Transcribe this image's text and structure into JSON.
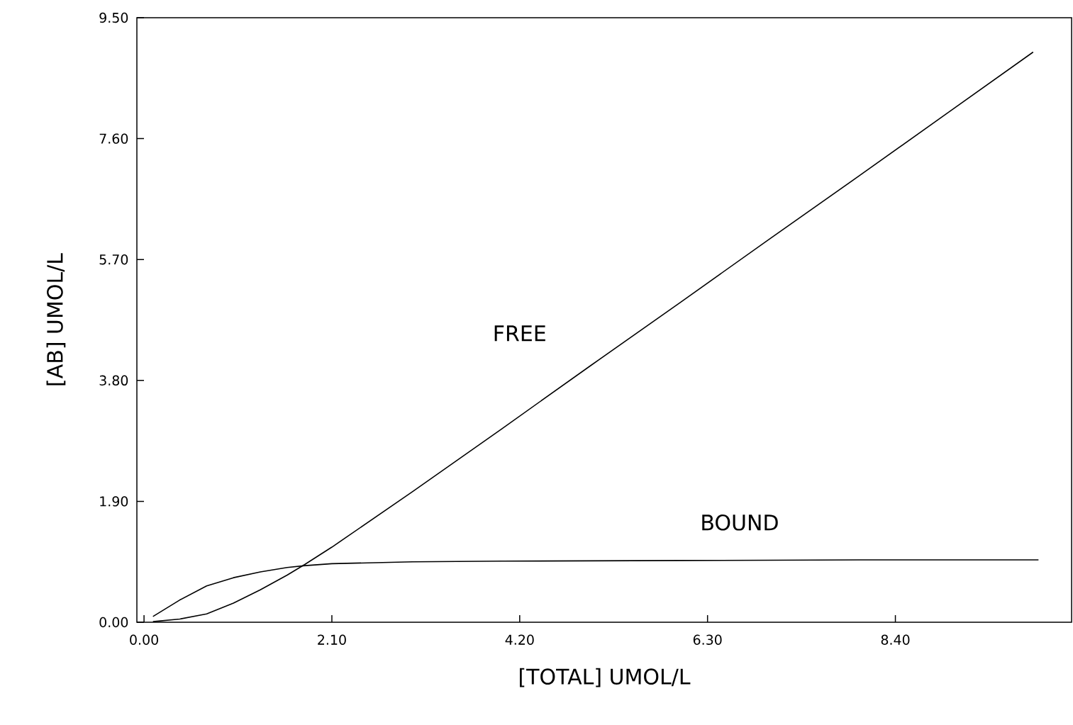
{
  "chart_data": {
    "type": "line",
    "xlabel": "[TOTAL] UMOL/L",
    "ylabel": "[AB] UMOL/L",
    "xlim": [
      -0.08,
      10.37
    ],
    "ylim": [
      0,
      9.5
    ],
    "xticks": [
      {
        "value": 0,
        "label": "0.00"
      },
      {
        "value": 2.1,
        "label": "2.10"
      },
      {
        "value": 4.2,
        "label": "4.20"
      },
      {
        "value": 6.3,
        "label": "6.30"
      },
      {
        "value": 8.4,
        "label": "8.40"
      }
    ],
    "yticks": [
      {
        "value": 0,
        "label": "0.00"
      },
      {
        "value": 1.9,
        "label": "1.90"
      },
      {
        "value": 3.8,
        "label": "3.80"
      },
      {
        "value": 5.7,
        "label": "5.70"
      },
      {
        "value": 7.6,
        "label": "7.60"
      },
      {
        "value": 9.5,
        "label": "9.50"
      }
    ],
    "x": [
      0.1,
      0.4,
      0.7,
      1.0,
      1.3,
      1.6,
      1.8,
      2.1,
      3,
      4,
      5,
      6,
      7,
      8,
      9,
      9.94
    ],
    "series": [
      {
        "name": "FREE",
        "color": "#000000",
        "values": [
          0.01,
          0.05,
          0.13,
          0.3,
          0.51,
          0.74,
          0.91,
          1.18,
          2.05,
          3.04,
          4.04,
          5.03,
          6.03,
          7.02,
          8.02,
          8.96
        ]
      },
      {
        "name": "BOUND",
        "color": "#000000",
        "x": [
          0.1,
          0.4,
          0.7,
          1.0,
          1.3,
          1.6,
          1.8,
          2.1,
          3,
          4,
          6,
          8,
          10.0
        ],
        "values": [
          0.09,
          0.35,
          0.57,
          0.7,
          0.79,
          0.86,
          0.89,
          0.92,
          0.95,
          0.96,
          0.97,
          0.98,
          0.98
        ]
      }
    ],
    "grid": false,
    "legend": false,
    "marker": "none",
    "line_style": "solid"
  }
}
